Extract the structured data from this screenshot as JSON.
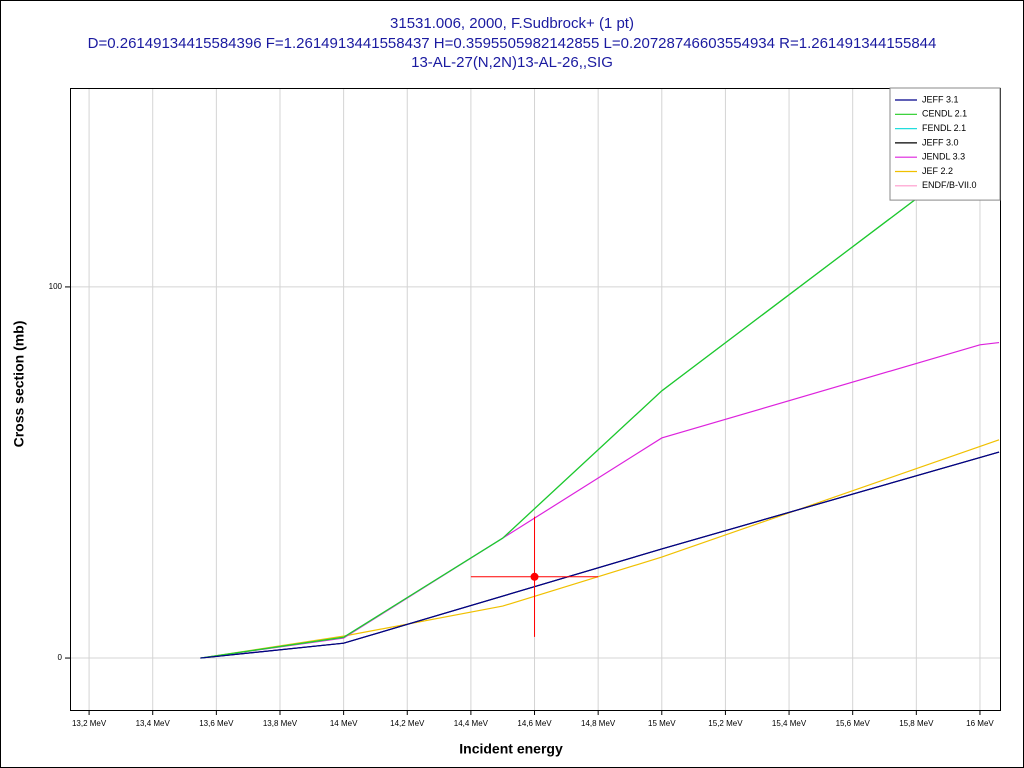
{
  "chart_data": {
    "type": "line",
    "title": "31531.006, 2000, F.Sudbrock+ (1 pt)",
    "subtitle": "D=0.26149134415584396 F=1.2614913441558437 H=0.3595505982142855 L=0.20728746603554934 R=1.261491344155844",
    "reaction": "13-AL-27(N,2N)13-AL-26,,SIG",
    "x_label": "Incident energy",
    "y_label": "Cross section (mb)",
    "xlim": [
      13.14,
      16.063
    ],
    "ylim": [
      -14.0,
      153.6
    ],
    "xticks": [
      {
        "value": 13.2,
        "label": "13,2 MeV"
      },
      {
        "value": 13.4,
        "label": "13,4 MeV"
      },
      {
        "value": 13.6,
        "label": "13,6 MeV"
      },
      {
        "value": 13.8,
        "label": "13,8 MeV"
      },
      {
        "value": 14.0,
        "label": "14 MeV"
      },
      {
        "value": 14.2,
        "label": "14,2 MeV"
      },
      {
        "value": 14.4,
        "label": "14,4 MeV"
      },
      {
        "value": 14.6,
        "label": "14,6 MeV"
      },
      {
        "value": 14.8,
        "label": "14,8 MeV"
      },
      {
        "value": 15.0,
        "label": "15 MeV"
      },
      {
        "value": 15.2,
        "label": "15,2 MeV"
      },
      {
        "value": 15.4,
        "label": "15,4 MeV"
      },
      {
        "value": 15.6,
        "label": "15,6 MeV"
      },
      {
        "value": 15.8,
        "label": "15,8 MeV"
      },
      {
        "value": 16.0,
        "label": "16 MeV"
      }
    ],
    "yticks": [
      0,
      100
    ],
    "grid": true,
    "legend": "top-right",
    "series": [
      {
        "name": "JEFF 3.1",
        "color": "#00008b",
        "x": [
          13.55,
          14.0,
          15.0,
          16.06
        ],
        "values": [
          0,
          4.0,
          29.4,
          55.5
        ]
      },
      {
        "name": "CENDL 2.1",
        "color": "#22cc22",
        "x": [
          13.55,
          14.0,
          14.5,
          15.0,
          16.06
        ],
        "values": [
          0,
          5.6,
          32.3,
          72.0,
          140.6
        ]
      },
      {
        "name": "FENDL 2.1",
        "color": "#22dddd",
        "x": [
          13.55,
          14.0,
          14.5,
          15.0,
          16.06
        ],
        "values": [
          0,
          5.6,
          32.3,
          72.0,
          140.6
        ]
      },
      {
        "name": "JEFF 3.0",
        "color": "#000000",
        "x": [
          13.55,
          14.0,
          15.0,
          16.06
        ],
        "values": [
          0,
          4.0,
          29.4,
          55.5
        ]
      },
      {
        "name": "JENDL 3.3",
        "color": "#dd22dd",
        "x": [
          13.55,
          14.0,
          14.5,
          15.0,
          16.0,
          16.06
        ],
        "values": [
          0,
          5.4,
          32.3,
          59.3,
          84.4,
          85.0
        ]
      },
      {
        "name": "JEF 2.2",
        "color": "#f0c000",
        "x": [
          13.55,
          14.0,
          14.5,
          15.0,
          16.06
        ],
        "values": [
          0,
          5.9,
          14.0,
          27.2,
          58.8
        ]
      },
      {
        "name": "ENDF/B-VII.0",
        "color": "#ff99cc",
        "x": [
          13.55,
          14.0,
          14.5,
          15.0,
          16.06
        ],
        "values": [
          0,
          5.6,
          32.3,
          72.0,
          140.6
        ]
      }
    ],
    "points": {
      "color": "#ff0000",
      "x": [
        14.6
      ],
      "values": [
        21.9
      ],
      "xerr": [
        0.2
      ],
      "yerr": [
        16.2
      ]
    }
  }
}
